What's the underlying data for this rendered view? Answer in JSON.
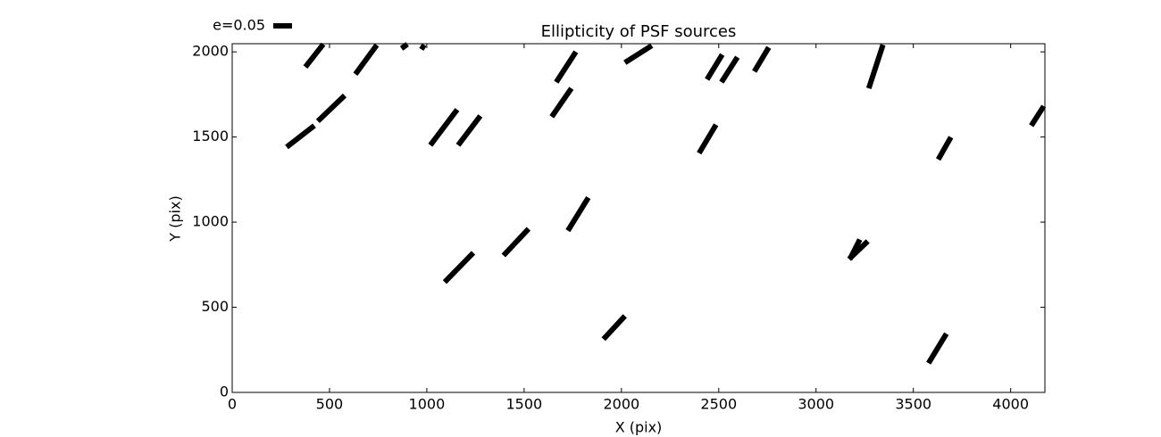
{
  "chart_data": {
    "type": "whisker",
    "title": "Ellipticity of PSF sources",
    "x_label": "X (pix)",
    "y_label": "Y (pix)",
    "legend_label": "e=0.05",
    "color": "#000000",
    "xlim": [
      0,
      4176
    ],
    "ylim": [
      0,
      2048
    ],
    "xticks": [
      0,
      500,
      1000,
      1500,
      2000,
      2500,
      3000,
      3500,
      4000
    ],
    "yticks": [
      0,
      500,
      1000,
      1500,
      2000
    ],
    "segments": [
      {
        "x": [
          376,
          468
        ],
        "y": [
          1911,
          2045
        ]
      },
      {
        "x": [
          633,
          743
        ],
        "y": [
          1869,
          2040
        ]
      },
      {
        "x": [
          870,
          900
        ],
        "y": [
          2020,
          2045
        ]
      },
      {
        "x": [
          968,
          991
        ],
        "y": [
          2036,
          2020
        ]
      },
      {
        "x": [
          280,
          422
        ],
        "y": [
          1441,
          1567
        ]
      },
      {
        "x": [
          440,
          578
        ],
        "y": [
          1593,
          1744
        ]
      },
      {
        "x": [
          1018,
          1156
        ],
        "y": [
          1452,
          1661
        ]
      },
      {
        "x": [
          1161,
          1275
        ],
        "y": [
          1452,
          1624
        ]
      },
      {
        "x": [
          1665,
          1766
        ],
        "y": [
          1822,
          2000
        ]
      },
      {
        "x": [
          1642,
          1743
        ],
        "y": [
          1619,
          1786
        ]
      },
      {
        "x": [
          2018,
          2156
        ],
        "y": [
          1937,
          2037
        ]
      },
      {
        "x": [
          2440,
          2518
        ],
        "y": [
          1838,
          1984
        ]
      },
      {
        "x": [
          2514,
          2596
        ],
        "y": [
          1822,
          1969
        ]
      },
      {
        "x": [
          2683,
          2757
        ],
        "y": [
          1885,
          2026
        ]
      },
      {
        "x": [
          3271,
          3344
        ],
        "y": [
          1786,
          2042
        ]
      },
      {
        "x": [
          2399,
          2486
        ],
        "y": [
          1405,
          1572
        ]
      },
      {
        "x": [
          3628,
          3693
        ],
        "y": [
          1368,
          1499
        ]
      },
      {
        "x": [
          4106,
          4170
        ],
        "y": [
          1567,
          1681
        ]
      },
      {
        "x": [
          1725,
          1830
        ],
        "y": [
          950,
          1144
        ]
      },
      {
        "x": [
          1394,
          1523
        ],
        "y": [
          804,
          961
        ]
      },
      {
        "x": [
          1092,
          1239
        ],
        "y": [
          648,
          820
        ]
      },
      {
        "x": [
          3170,
          3266
        ],
        "y": [
          783,
          888
        ]
      },
      {
        "x": [
          3174,
          3225
        ],
        "y": [
          783,
          898
        ]
      },
      {
        "x": [
          1908,
          2018
        ],
        "y": [
          313,
          449
        ]
      },
      {
        "x": [
          3578,
          3670
        ],
        "y": [
          172,
          345
        ]
      }
    ]
  }
}
